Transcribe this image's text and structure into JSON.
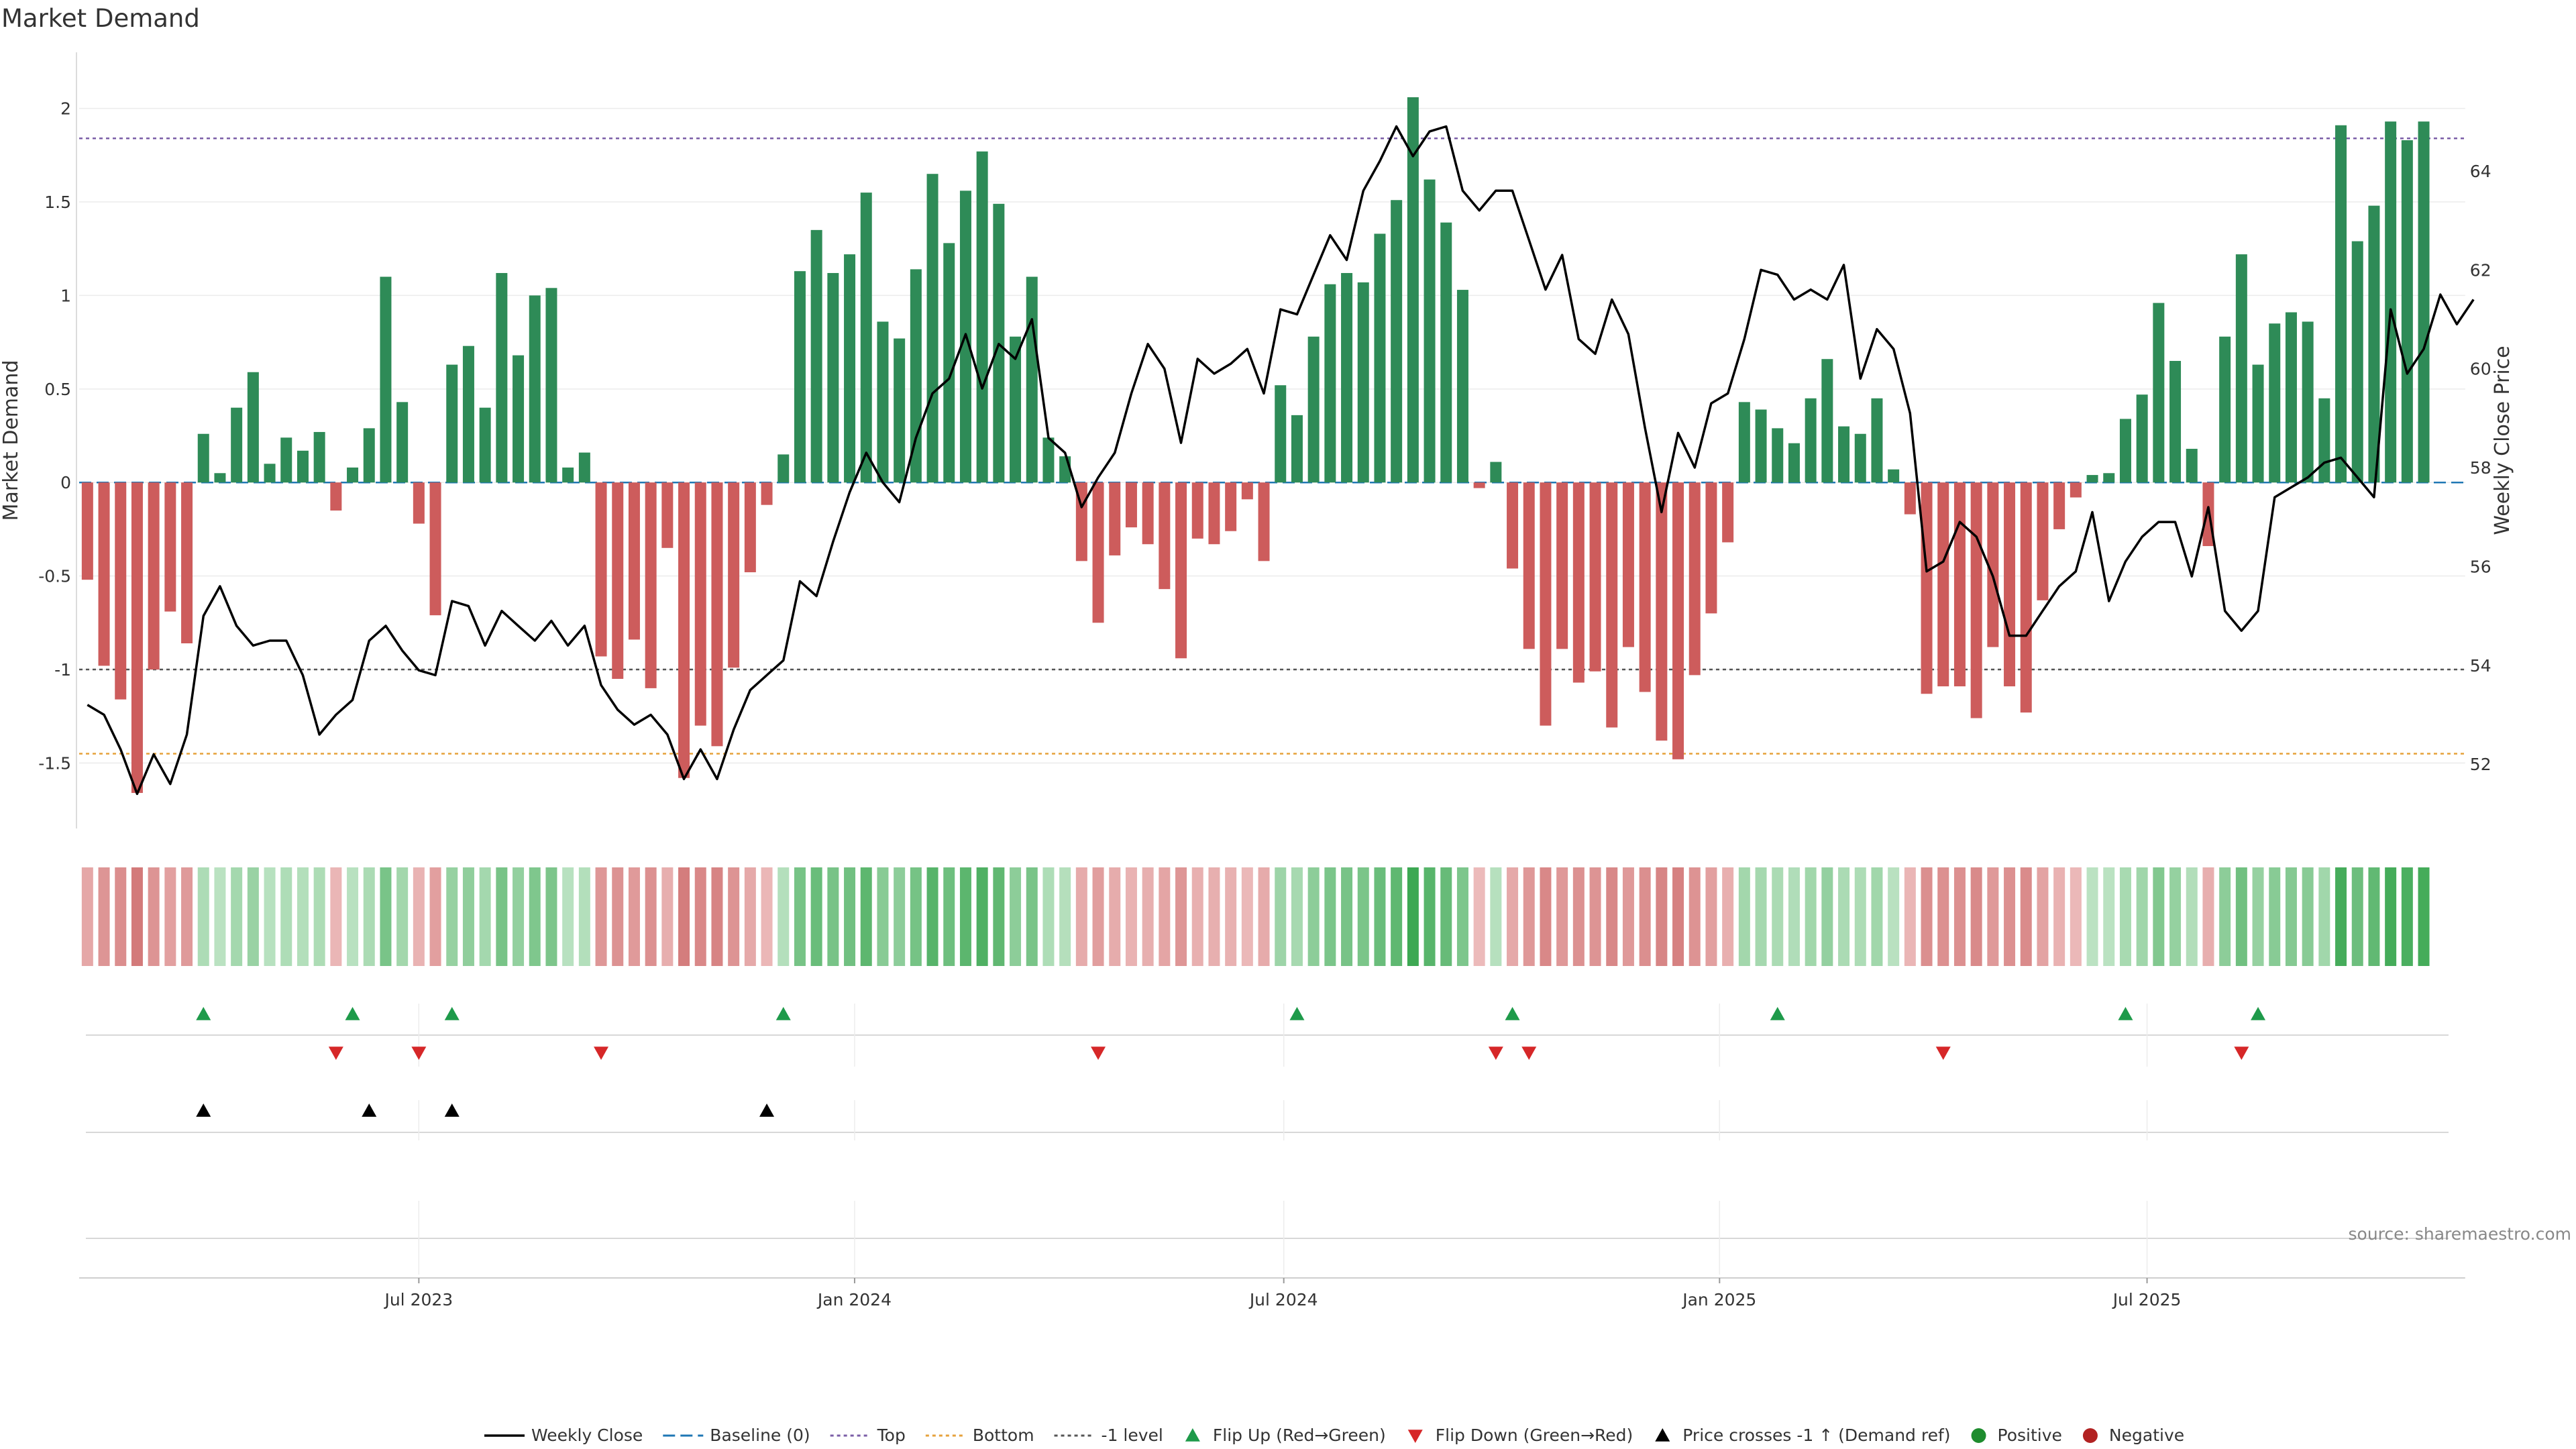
{
  "title": "Market Demand",
  "source": "source: sharemaestro.com",
  "colors": {
    "positive": "#2e8b57",
    "negative": "#cd5c5c",
    "price": "#000000",
    "baseline": "#1f77b4",
    "top": "#7b5ea7",
    "bottom": "#e6a23c",
    "minus1": "#555555",
    "flip_up": "#1e9a4a",
    "flip_down": "#d62728",
    "cross": "#000000",
    "positive_dot": "#1e8c2e",
    "negative_dot": "#b22222"
  },
  "chart_data": {
    "type": "bar",
    "title": "Market Demand",
    "ylabel_left": "Market Demand",
    "ylabel_right": "Weekly Close Price",
    "ylim_left": [
      -1.85,
      2.3
    ],
    "ylim_right": [
      50.7,
      66.4
    ],
    "yticks_left": [
      -1.5,
      -1,
      -0.5,
      0,
      0.5,
      1,
      1.5,
      2
    ],
    "yticks_left_labels": [
      "-1.5",
      "-1",
      "-0.5",
      "0",
      "0.5",
      "1",
      "1.5",
      "2"
    ],
    "yticks_right": [
      52,
      54,
      56,
      58,
      60,
      62,
      64
    ],
    "yticks_right_labels": [
      "52",
      "54",
      "56",
      "58",
      "60",
      "62",
      "64"
    ],
    "x_ticks": [
      {
        "index": 20.5,
        "label": "Jul 2023"
      },
      {
        "index": 46.8,
        "label": "Jan 2024"
      },
      {
        "index": 72.7,
        "label": "Jul 2024"
      },
      {
        "index": 99.0,
        "label": "Jan 2025"
      },
      {
        "index": 124.8,
        "label": "Jul 2025"
      }
    ],
    "reference_lines": {
      "top": 1.84,
      "bottom": -1.45,
      "minus1": -1.0,
      "baseline": 0
    },
    "weeks": 144,
    "demand": [
      -0.52,
      -0.98,
      -1.16,
      -1.66,
      -1.0,
      -0.69,
      -0.86,
      0.26,
      0.05,
      0.4,
      0.59,
      0.1,
      0.24,
      0.17,
      0.27,
      -0.15,
      0.08,
      0.29,
      1.1,
      0.43,
      -0.22,
      -0.71,
      0.63,
      0.73,
      0.4,
      1.12,
      0.68,
      1.0,
      1.04,
      0.08,
      0.16,
      -0.93,
      -1.05,
      -0.84,
      -1.1,
      -0.35,
      -1.58,
      -1.3,
      -1.41,
      -0.99,
      -0.48,
      -0.12,
      0.15,
      1.13,
      1.35,
      1.12,
      1.22,
      1.55,
      0.86,
      0.77,
      1.14,
      1.65,
      1.28,
      1.56,
      1.77,
      1.49,
      0.78,
      1.1,
      0.24,
      0.14,
      -0.42,
      -0.75,
      -0.39,
      -0.24,
      -0.33,
      -0.57,
      -0.94,
      -0.3,
      -0.33,
      -0.26,
      -0.09,
      -0.42,
      0.52,
      0.36,
      0.78,
      1.06,
      1.12,
      1.07,
      1.33,
      1.51,
      2.06,
      1.62,
      1.39,
      1.03,
      -0.03,
      0.11,
      -0.46,
      -0.89,
      -1.3,
      -0.89,
      -1.07,
      -1.01,
      -1.31,
      -0.88,
      -1.12,
      -1.38,
      -1.48,
      -1.03,
      -0.7,
      -0.32,
      0.43,
      0.39,
      0.29,
      0.21,
      0.45,
      0.66,
      0.3,
      0.26,
      0.45,
      0.07,
      -0.17,
      -1.13,
      -1.09,
      -1.09,
      -1.26,
      -0.88,
      -1.09,
      -1.23,
      -0.63,
      -0.25,
      -0.08,
      0.04,
      0.05,
      0.34,
      0.47,
      0.96,
      0.65,
      0.18,
      -0.34,
      0.78,
      1.22,
      0.63,
      0.85,
      0.91,
      0.86,
      0.45,
      1.91,
      1.29,
      1.48,
      1.93,
      1.83,
      1.93
    ],
    "price": [
      53.2,
      53.0,
      52.3,
      51.4,
      52.2,
      51.6,
      52.6,
      55.0,
      55.6,
      54.8,
      54.4,
      54.5,
      54.5,
      53.8,
      52.6,
      53.0,
      53.3,
      54.5,
      54.8,
      54.3,
      53.9,
      53.8,
      55.3,
      55.2,
      54.4,
      55.1,
      54.8,
      54.5,
      54.9,
      54.4,
      54.8,
      53.6,
      53.1,
      52.8,
      53.0,
      52.6,
      51.7,
      52.3,
      51.7,
      52.7,
      53.5,
      53.8,
      54.1,
      55.7,
      55.4,
      56.5,
      57.5,
      58.3,
      57.7,
      57.3,
      58.6,
      59.5,
      59.8,
      60.7,
      59.6,
      60.5,
      60.2,
      61.0,
      58.6,
      58.3,
      57.2,
      57.8,
      58.3,
      59.5,
      60.5,
      60.0,
      58.5,
      60.2,
      59.9,
      60.1,
      60.4,
      59.5,
      61.2,
      61.1,
      61.9,
      62.7,
      62.2,
      63.6,
      64.2,
      64.9,
      64.3,
      64.8,
      64.9,
      63.6,
      63.2,
      63.6,
      63.6,
      62.6,
      61.6,
      62.3,
      60.6,
      60.3,
      61.4,
      60.7,
      58.8,
      57.1,
      58.7,
      58.0,
      59.3,
      59.5,
      60.6,
      62.0,
      61.9,
      61.4,
      61.6,
      61.4,
      62.1,
      59.8,
      60.8,
      60.4,
      59.1,
      55.9,
      56.1,
      56.9,
      56.6,
      55.8,
      54.6,
      54.6,
      55.1,
      55.6,
      55.9,
      57.1,
      55.3,
      56.1,
      56.6,
      56.9,
      56.9,
      55.8,
      57.2,
      55.1,
      54.7,
      55.1,
      57.4,
      57.6,
      57.8,
      58.1,
      58.2,
      57.8,
      57.4,
      61.2,
      59.9,
      60.4,
      61.5,
      60.9,
      61.4
    ],
    "flip_up_weeks": [
      7,
      16,
      22,
      42,
      73,
      86,
      102,
      123,
      131
    ],
    "flip_down_weeks": [
      15,
      20,
      31,
      61,
      85,
      87,
      112,
      130
    ],
    "price_cross_weeks": [
      7,
      17,
      22,
      41
    ],
    "legend": [
      "Weekly Close",
      "Baseline (0)",
      "Top",
      "Bottom",
      "-1 level",
      "Flip Up (Red→Green)",
      "Flip Down (Green→Red)",
      "Price crosses -1 ↑ (Demand ref)",
      "Positive",
      "Negative"
    ]
  }
}
